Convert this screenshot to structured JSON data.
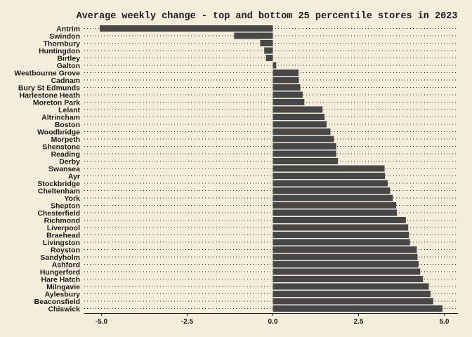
{
  "chart_data": {
    "type": "bar",
    "orientation": "horizontal",
    "title": "Average weekly change - top and bottom 25 percentile stores in 2023",
    "xlabel": "",
    "ylabel": "",
    "xlim": [
      -5.5,
      5.4
    ],
    "x_ticks": [
      "-5.0",
      "-2.5",
      "0.0",
      "2.5",
      "5.0"
    ],
    "grid": "dotted horizontal",
    "bar_color": "#474747",
    "background_color": "#f5eddc",
    "categories": [
      "Antrim",
      "Swindon",
      "Thornbury",
      "Huntingdon",
      "Birtley",
      "Galton",
      "Westbourne Grove",
      "Cadnam",
      "Bury St Edmunds",
      "Harlestone Heath",
      "Moreton Park",
      "Lelant",
      "Altrincham",
      "Boston",
      "Woodbridge",
      "Morpeth",
      "Shenstone",
      "Reading",
      "Derby",
      "Swansea",
      "Ayr",
      "Stockbridge",
      "Cheltenham",
      "York",
      "Shepton",
      "Chesterfield",
      "Richmond",
      "Liverpool",
      "Braehead",
      "Livingston",
      "Royston",
      "Sandyholm",
      "Ashford",
      "Hungerford",
      "Hare Hatch",
      "Milngavie",
      "Aylesbury",
      "Beaconsfield",
      "Chiswick"
    ],
    "values": [
      -5.05,
      -1.13,
      -0.37,
      -0.25,
      -0.2,
      0.1,
      0.75,
      0.76,
      0.8,
      0.87,
      0.92,
      1.45,
      1.51,
      1.57,
      1.68,
      1.78,
      1.85,
      1.85,
      1.9,
      3.26,
      3.27,
      3.35,
      3.42,
      3.5,
      3.6,
      3.62,
      3.88,
      3.95,
      3.97,
      4.0,
      4.2,
      4.22,
      4.25,
      4.3,
      4.38,
      4.55,
      4.6,
      4.68,
      4.95
    ]
  }
}
